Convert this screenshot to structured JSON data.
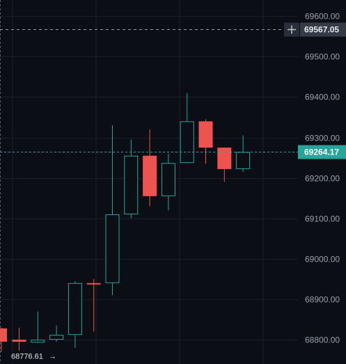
{
  "chart_data": {
    "type": "candlestick",
    "y_axis": {
      "ylim": [
        68740,
        69640
      ],
      "ticks": [
        "69600.00",
        "69500.00",
        "69400.00",
        "69300.00",
        "69200.00",
        "69100.00",
        "69000.00",
        "68900.00",
        "68800.00"
      ],
      "tick_values": [
        69600,
        69500,
        69400,
        69300,
        69200,
        69100,
        69000,
        68900,
        68800
      ]
    },
    "colors": {
      "up": "#26a69a",
      "down": "#ef5350",
      "background": "#0c0e15",
      "grid": "#1b1f2a",
      "axis_text": "#9aa0ad"
    },
    "candles": [
      {
        "open": 68800,
        "high": 68830,
        "low": 68770,
        "close": 68795
      },
      {
        "open": 68793,
        "high": 68870,
        "low": 68792,
        "close": 68800
      },
      {
        "open": 68800,
        "high": 68835,
        "low": 68795,
        "close": 68812
      },
      {
        "open": 68812,
        "high": 68945,
        "low": 68780,
        "close": 68940
      },
      {
        "open": 68940,
        "high": 68950,
        "low": 68820,
        "close": 68938
      },
      {
        "open": 68940,
        "high": 69330,
        "low": 68910,
        "close": 69110
      },
      {
        "open": 69110,
        "high": 69295,
        "low": 69100,
        "close": 69255
      },
      {
        "open": 69255,
        "high": 69320,
        "low": 69130,
        "close": 69155
      },
      {
        "open": 69155,
        "high": 69260,
        "low": 69120,
        "close": 69237
      },
      {
        "open": 69237,
        "high": 69410,
        "low": 69236,
        "close": 69340
      },
      {
        "open": 69340,
        "high": 69345,
        "low": 69235,
        "close": 69275
      },
      {
        "open": 69275,
        "high": 69275,
        "low": 69190,
        "close": 69222
      },
      {
        "open": 69222,
        "high": 69305,
        "low": 69215,
        "close": 69264.17
      }
    ],
    "crosshair": {
      "value": 69567.05,
      "label": "69567.05"
    },
    "last_price": {
      "value": 69264.17,
      "label": "69264.17"
    },
    "low_marker": {
      "value": 68776.61,
      "label": "68776.61",
      "arrow": "→"
    },
    "left_bar": {
      "open": 68828,
      "high": 68830,
      "low": 68770,
      "close": 68795
    }
  }
}
